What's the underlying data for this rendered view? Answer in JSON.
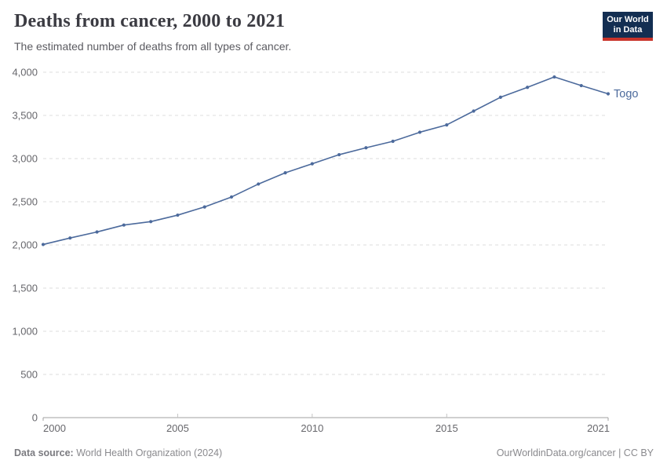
{
  "header": {
    "title": "Deaths from cancer, 2000 to 2021",
    "subtitle": "The estimated number of deaths from all types of cancer."
  },
  "logo": {
    "line1": "Our World",
    "line2": "in Data",
    "bg_color": "#132e52",
    "accent_color": "#c9342b"
  },
  "footer": {
    "source_label": "Data source:",
    "source_value": " World Health Organization (2024)",
    "right_text": "OurWorldinData.org/cancer | CC BY"
  },
  "chart_data": {
    "type": "line",
    "title": "Deaths from cancer, 2000 to 2021",
    "subtitle": "The estimated number of deaths from all types of cancer.",
    "xlabel": "",
    "ylabel": "",
    "xlim": [
      2000,
      2021
    ],
    "ylim": [
      0,
      4000
    ],
    "x_ticks": [
      2000,
      2005,
      2010,
      2015,
      2021
    ],
    "y_ticks": [
      0,
      500,
      1000,
      1500,
      2000,
      2500,
      3000,
      3500,
      4000
    ],
    "grid": "horizontal-dashed",
    "legend_position": "end-of-line-label",
    "series": [
      {
        "name": "Togo",
        "color": "#4C6A9C",
        "x": [
          2000,
          2001,
          2002,
          2003,
          2004,
          2005,
          2006,
          2007,
          2008,
          2009,
          2010,
          2011,
          2012,
          2013,
          2014,
          2015,
          2016,
          2017,
          2018,
          2019,
          2020,
          2021
        ],
        "values": [
          2005,
          2080,
          2150,
          2230,
          2270,
          2345,
          2440,
          2555,
          2705,
          2835,
          2940,
          3045,
          3125,
          3200,
          3305,
          3390,
          3550,
          3710,
          3825,
          3945,
          3845,
          3750
        ]
      }
    ],
    "colors": {
      "gridline": "#dedede",
      "axis": "#a0a0a0",
      "tick_label": "#67676c"
    }
  }
}
